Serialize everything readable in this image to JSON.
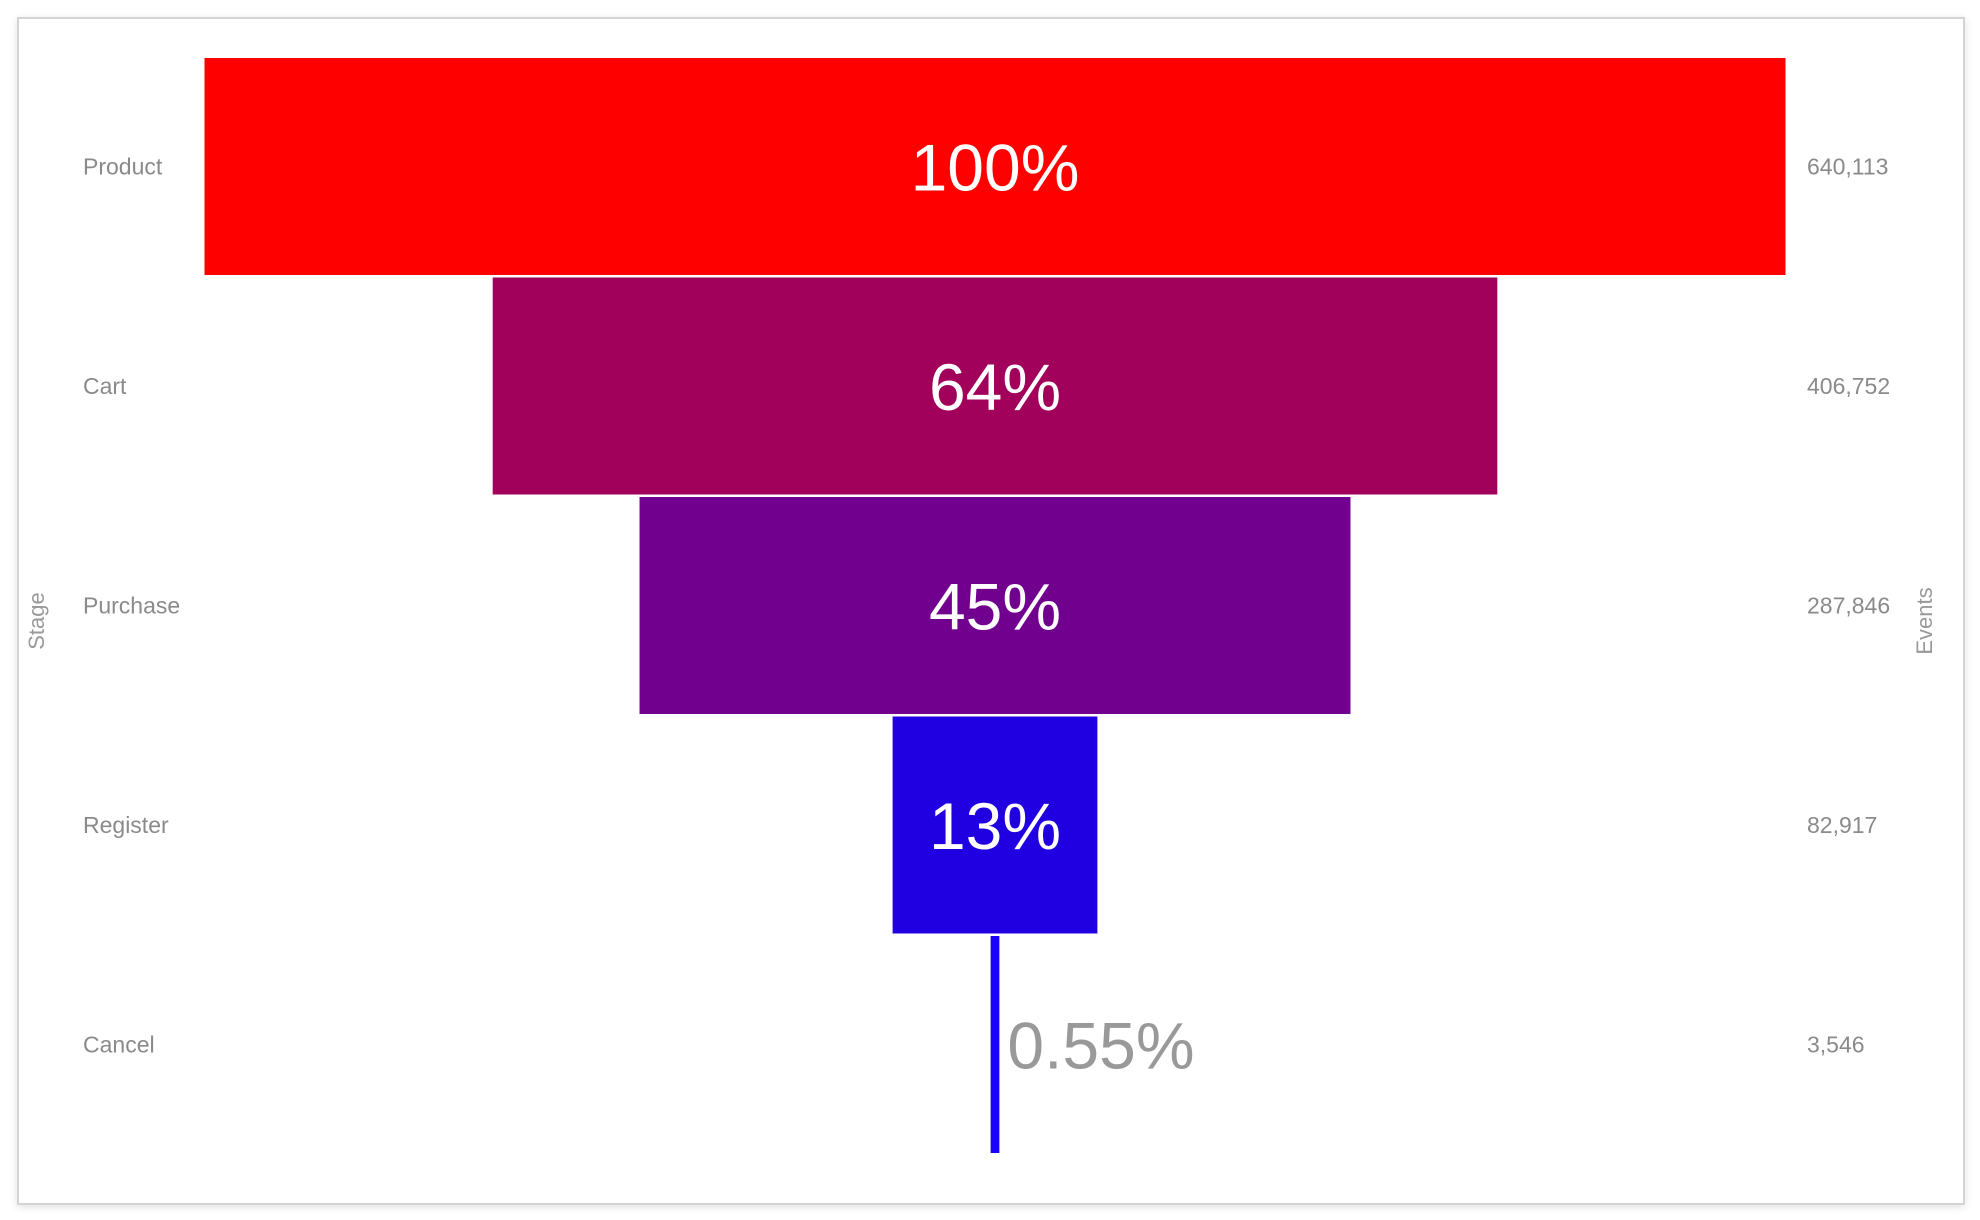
{
  "chart_data": {
    "type": "funnel",
    "ylabel": "Stage",
    "y2label": "Events",
    "categories": [
      "Product",
      "Cart",
      "Purchase",
      "Register",
      "Cancel"
    ],
    "values": [
      640113,
      406752,
      287846,
      82917,
      3546
    ],
    "value_labels": [
      "640,113",
      "406,752",
      "287,846",
      "82,917",
      "3,546"
    ],
    "percent_labels": [
      "100%",
      "64%",
      "45%",
      "13%",
      "0.55%"
    ],
    "colors": [
      "#ff0000",
      "#a1005b",
      "#71008e",
      "#2000e0",
      "#1a00ff"
    ],
    "outside_label_color": "#999999"
  }
}
